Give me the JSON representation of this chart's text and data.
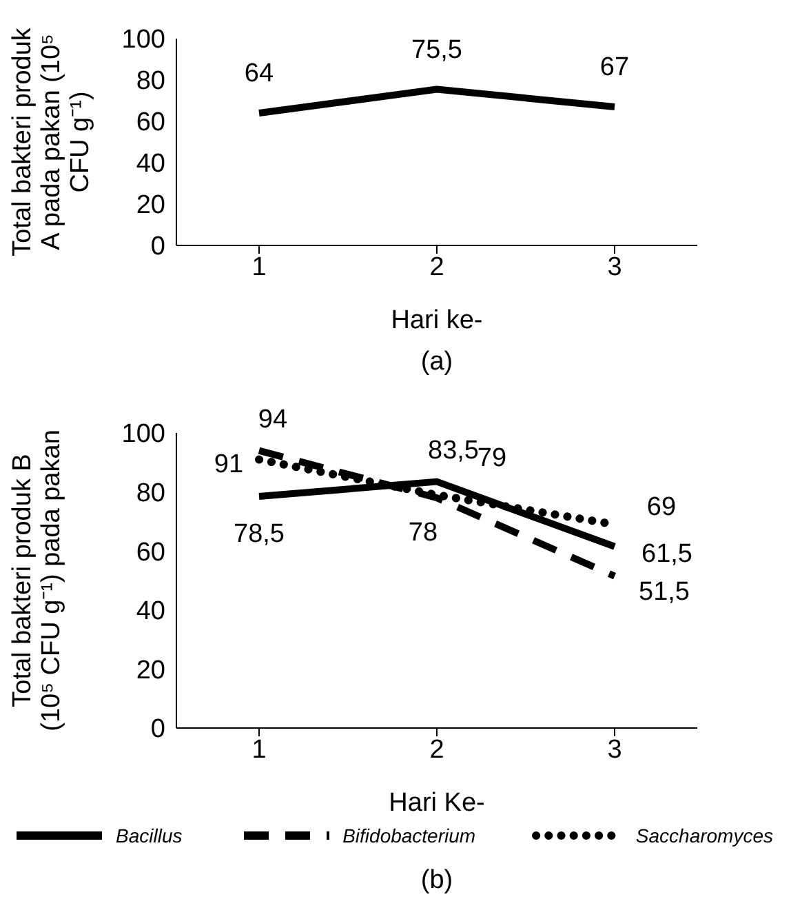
{
  "chart_data": [
    {
      "type": "line",
      "categories": [
        "1",
        "2",
        "3"
      ],
      "xlabel": "Hari ke-",
      "ylabel": "Total bakteri produk A pada pakan (10⁵ CFU g⁻¹)",
      "ylim": [
        0,
        100
      ],
      "yticks": [
        0,
        20,
        40,
        60,
        80,
        100
      ],
      "grid": false,
      "legend": false,
      "marker": "none",
      "annotations": [
        "(a)"
      ],
      "series": [
        {
          "color": "#000000",
          "line_style": "solid",
          "values": [
            64,
            75.5,
            67
          ],
          "value_labels": [
            "64",
            "75,5",
            "67"
          ]
        }
      ]
    },
    {
      "type": "line",
      "categories": [
        "1",
        "2",
        "3"
      ],
      "xlabel": "Hari Ke-",
      "ylabel": "Total bakteri produk B (10⁵ CFU g⁻¹) pada pakan",
      "ylim": [
        0,
        100
      ],
      "yticks": [
        0,
        20,
        40,
        60,
        80,
        100
      ],
      "grid": false,
      "legend": "bottom",
      "marker": "none",
      "annotations": [
        "(b)"
      ],
      "series": [
        {
          "name": "Bacillus",
          "color": "#000000",
          "line_style": "solid",
          "values": [
            78.5,
            83.5,
            61.5
          ],
          "value_labels": [
            "78,5",
            "83,5",
            "61,5"
          ]
        },
        {
          "name": "Bifidobacterium",
          "color": "#000000",
          "line_style": "dashed",
          "values": [
            94,
            78,
            51.5
          ],
          "value_labels": [
            "94",
            "78",
            "51,5"
          ]
        },
        {
          "name": "Saccharomyces",
          "color": "#000000",
          "line_style": "dotted",
          "values": [
            91,
            79,
            69
          ],
          "value_labels": [
            "91",
            "79",
            "69"
          ]
        }
      ]
    }
  ]
}
